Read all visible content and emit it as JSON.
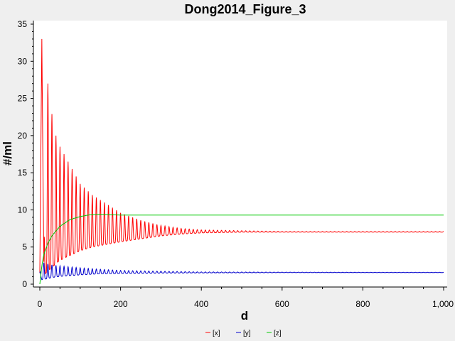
{
  "chart_data": {
    "type": "line",
    "title": "Dong2014_Figure_3",
    "xlabel": "d",
    "ylabel": "#/ml",
    "xlim": [
      0,
      1000
    ],
    "ylim": [
      0,
      35
    ],
    "x_ticks": [
      "0",
      "200",
      "400",
      "600",
      "800",
      "1,000"
    ],
    "y_ticks": [
      "0",
      "5",
      "10",
      "15",
      "20",
      "25",
      "30",
      "35"
    ],
    "grid": false,
    "legend_position": "bottom-center",
    "series": [
      {
        "name": "[x]",
        "color": "#ff0000",
        "x": [
          0,
          5,
          10,
          15,
          25,
          35,
          45,
          60,
          80,
          100,
          130,
          160,
          200,
          250,
          300,
          350,
          400,
          500,
          600,
          800,
          1000
        ],
        "y": [
          1.5,
          33,
          3,
          29,
          25,
          21,
          19,
          17.5,
          15.5,
          14,
          12,
          11,
          10,
          9,
          8,
          7.5,
          7.2,
          7.1,
          7.05,
          7.05,
          7.05
        ],
        "upper_envelope": [
          1.5,
          33,
          3,
          29.2,
          24.8,
          21,
          19,
          17.5,
          15.5,
          13.5,
          12,
          11,
          9.6,
          8.6,
          7.9,
          7.5,
          7.3,
          7.2,
          7.1,
          7.1,
          7.1
        ],
        "lower_envelope": [
          1.5,
          33,
          1,
          1.5,
          2,
          2.5,
          3,
          3.5,
          4,
          4.5,
          5,
          5.3,
          5.7,
          6.1,
          6.5,
          6.75,
          6.9,
          7.0,
          7.0,
          7.0,
          7.0
        ],
        "oscillation_period": 10
      },
      {
        "name": "[y]",
        "color": "#0000cc",
        "x": [
          0,
          5,
          15,
          30,
          60,
          100,
          150,
          200,
          300,
          400,
          600,
          800,
          1000
        ],
        "y": [
          1.5,
          3,
          2.5,
          2.2,
          1.9,
          1.8,
          1.7,
          1.6,
          1.55,
          1.55,
          1.55,
          1.55,
          1.55
        ],
        "upper_envelope": [
          1.5,
          3,
          2.8,
          2.6,
          2.4,
          2.2,
          2.0,
          1.85,
          1.75,
          1.65,
          1.62,
          1.6,
          1.6
        ],
        "lower_envelope": [
          1.5,
          0.6,
          0.7,
          0.9,
          1.1,
          1.25,
          1.4,
          1.45,
          1.5,
          1.52,
          1.55,
          1.55,
          1.55
        ],
        "oscillation_period": 10
      },
      {
        "name": "[z]",
        "color": "#00c800",
        "x": [
          0,
          5,
          10,
          20,
          30,
          50,
          75,
          100,
          125,
          150,
          175,
          200,
          300,
          400,
          600,
          800,
          1000
        ],
        "y": [
          0,
          2.5,
          4,
          5.5,
          6.5,
          7.8,
          8.7,
          9.1,
          9.35,
          9.4,
          9.35,
          9.3,
          9.3,
          9.3,
          9.3,
          9.3,
          9.3
        ]
      }
    ]
  }
}
